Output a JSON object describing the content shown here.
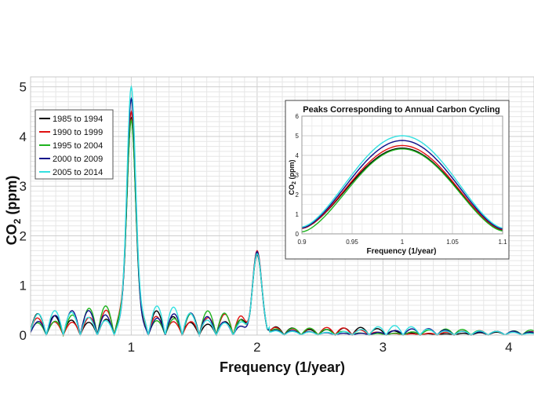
{
  "chart_data": [
    {
      "id": "main",
      "type": "line",
      "title": "",
      "xlabel": "Frequency (1/year)",
      "ylabel_main": "CO",
      "ylabel_sub": "2",
      "ylabel_unit": " (ppm)",
      "xlim": [
        0.2,
        4.2
      ],
      "ylim": [
        0,
        5.2
      ],
      "xticks": [
        1,
        2,
        3,
        4
      ],
      "xtick_labels": [
        "1",
        "2",
        "3",
        "4"
      ],
      "yticks": [
        0,
        1,
        2,
        3,
        4,
        5
      ],
      "ytick_labels": [
        "0",
        "1",
        "2",
        "3",
        "4",
        "5"
      ],
      "grid": true,
      "legend_position": "top-left",
      "series": [
        {
          "name": "1985 to 1994",
          "color": "#000000",
          "peak1": 4.37,
          "peak2": 1.62,
          "sl": 0.98,
          "sr": 0.92
        },
        {
          "name": "1990 to 1999",
          "color": "#e01010",
          "peak1": 4.5,
          "peak2": 1.7,
          "sl": 1.02,
          "sr": 1.0
        },
        {
          "name": "1995 to 2004",
          "color": "#1fb31f",
          "peak1": 4.33,
          "peak2": 1.66,
          "sl": 1.08,
          "sr": 1.05
        },
        {
          "name": "2000 to 2009",
          "color": "#10108a",
          "peak1": 4.76,
          "peak2": 1.68,
          "sl": 1.0,
          "sr": 0.9
        },
        {
          "name": "2005 to 2014",
          "color": "#33e0e0",
          "peak1": 5.0,
          "peak2": 1.64,
          "sl": 1.05,
          "sr": 1.1
        }
      ]
    },
    {
      "id": "inset",
      "type": "line",
      "title": "Peaks Corresponding to Annual Carbon Cycling",
      "xlabel": "Frequency (1/year)",
      "ylabel_main": "CO",
      "ylabel_sub": "2",
      "ylabel_unit": " (ppm)",
      "xlim": [
        0.9,
        1.1
      ],
      "ylim": [
        0,
        6
      ],
      "xticks": [
        0.9,
        0.95,
        1,
        1.05,
        1.1
      ],
      "xtick_labels": [
        "0.9",
        "0.95",
        "1",
        "1.05",
        "1.1"
      ],
      "yticks": [
        0,
        1,
        2,
        3,
        4,
        5,
        6
      ],
      "ytick_labels": [
        "0",
        "1",
        "2",
        "3",
        "4",
        "5",
        "6"
      ],
      "grid": true,
      "series": [
        {
          "name": "1985 to 1994",
          "color": "#000000",
          "peak": 4.37,
          "end_left": 0.28,
          "end_right": 0.2
        },
        {
          "name": "1990 to 1999",
          "color": "#e01010",
          "peak": 4.5,
          "end_left": 0.28,
          "end_right": 0.22
        },
        {
          "name": "1995 to 2004",
          "color": "#1fb31f",
          "peak": 4.33,
          "end_left": 0.1,
          "end_right": 0.15
        },
        {
          "name": "2000 to 2009",
          "color": "#10108a",
          "peak": 4.76,
          "end_left": 0.3,
          "end_right": 0.25
        },
        {
          "name": "2005 to 2014",
          "color": "#33e0e0",
          "peak": 5.0,
          "end_left": 0.35,
          "end_right": 0.3
        }
      ]
    }
  ]
}
